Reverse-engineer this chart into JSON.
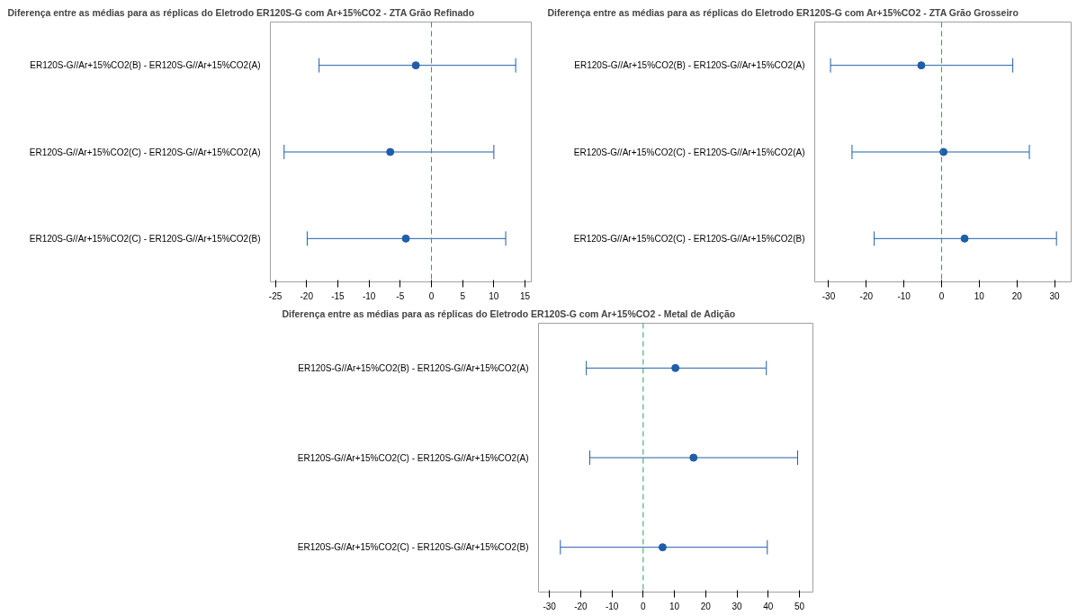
{
  "chart_data": [
    {
      "type": "scatter",
      "orientation": "horizontal",
      "title": "Diferença entre as médias para as réplicas do Eletrodo ER120S-G com Ar+15%CO2 - ZTA Grão Refinado",
      "categories": [
        "ER120S-G//Ar+15%CO2(B) - ER120S-G//Ar+15%CO2(A)",
        "ER120S-G//Ar+15%CO2(C) - ER120S-G//Ar+15%CO2(A)",
        "ER120S-G//Ar+15%CO2(C) - ER120S-G//Ar+15%CO2(B)"
      ],
      "values": [
        -2.5,
        -6.6,
        -4.1
      ],
      "errors": [
        [
          -18,
          13.5
        ],
        [
          -23.6,
          10
        ],
        [
          -19.9,
          11.9
        ]
      ],
      "color": "#1f5ea8",
      "marker": "circle",
      "grid": false,
      "xlim": [
        -25.8,
        16
      ],
      "xticks": [
        -25,
        -20,
        -15,
        -10,
        -5,
        0,
        5,
        10,
        15
      ],
      "ref_lines": [
        {
          "axis": "x",
          "value": 0,
          "color": "#2e9e5b",
          "line_style": "dashed"
        }
      ]
    },
    {
      "type": "scatter",
      "orientation": "horizontal",
      "title": "Diferença entre as médias para as réplicas do Eletrodo ER120S-G com Ar+15%CO2 - ZTA Grão Grosseiro",
      "categories": [
        "ER120S-G//Ar+15%CO2(B) - ER120S-G//Ar+15%CO2(A)",
        "ER120S-G//Ar+15%CO2(C) - ER120S-G//Ar+15%CO2(A)",
        "ER120S-G//Ar+15%CO2(C) - ER120S-G//Ar+15%CO2(B)"
      ],
      "values": [
        -5.4,
        0.5,
        6.1
      ],
      "errors": [
        [
          -29.5,
          18.9
        ],
        [
          -23.8,
          23.3
        ],
        [
          -17.9,
          30.5
        ]
      ],
      "color": "#1f5ea8",
      "marker": "circle",
      "grid": false,
      "xlim": [
        -33.7,
        34.4
      ],
      "xticks": [
        -30,
        -20,
        -10,
        0,
        10,
        20,
        30
      ],
      "ref_lines": [
        {
          "axis": "x",
          "value": 0,
          "color": "#2e9e5b",
          "line_style": "dashed"
        }
      ]
    },
    {
      "type": "scatter",
      "orientation": "horizontal",
      "title": "Diferença entre as médias para as réplicas do Eletrodo ER120S-G com Ar+15%CO2 - Metal de Adição",
      "categories": [
        "ER120S-G//Ar+15%CO2(B) - ER120S-G//Ar+15%CO2(A)",
        "ER120S-G//Ar+15%CO2(C) - ER120S-G//Ar+15%CO2(A)",
        "ER120S-G//Ar+15%CO2(C) - ER120S-G//Ar+15%CO2(B)"
      ],
      "values": [
        10.3,
        16.1,
        6.2
      ],
      "errors": [
        [
          -18.2,
          39.4
        ],
        [
          -17.1,
          49.4
        ],
        [
          -26.5,
          39.7
        ]
      ],
      "color": "#1f5ea8",
      "marker": "circle",
      "grid": false,
      "xlim": [
        -33.5,
        54.3
      ],
      "xticks": [
        -30,
        -20,
        -10,
        0,
        10,
        20,
        30,
        40,
        50
      ],
      "ref_lines": [
        {
          "axis": "x",
          "value": 0,
          "color": "#2e9e5b",
          "line_style": "dashed"
        }
      ]
    }
  ]
}
